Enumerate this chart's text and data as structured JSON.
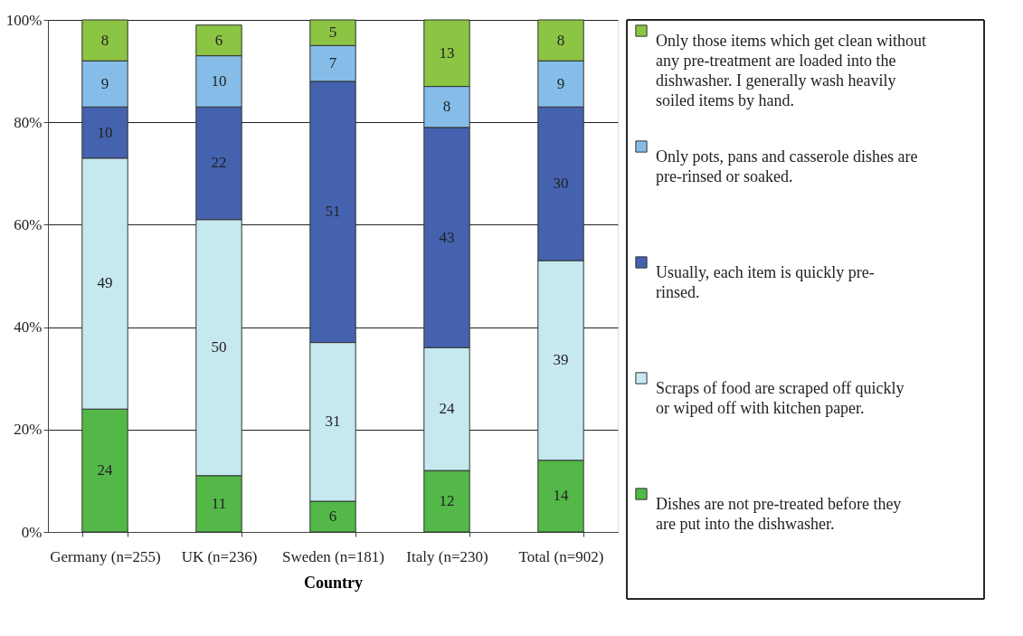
{
  "chart_data": {
    "type": "bar",
    "stacked": true,
    "xlabel": "Country",
    "categories": [
      "Germany (n=255)",
      "UK (n=236)",
      "Sweden (n=181)",
      "Italy (n=230)",
      "Total (n=902)"
    ],
    "series": [
      {
        "name": "Dishes are not pre-treated before they are put into the dishwasher.",
        "color": "#53b848",
        "values": [
          24,
          11,
          6,
          12,
          14
        ]
      },
      {
        "name": "Scraps of food are scraped off quickly or wiped off with kitchen paper.",
        "color": "#c6e9f0",
        "values": [
          49,
          50,
          31,
          24,
          39
        ]
      },
      {
        "name": "Usually, each item is quickly pre-rinsed.",
        "color": "#4462ae",
        "values": [
          10,
          22,
          51,
          43,
          30
        ]
      },
      {
        "name": "Only pots, pans and casserole dishes are pre-rinsed or soaked.",
        "color": "#85bde8",
        "values": [
          9,
          10,
          7,
          8,
          9
        ]
      },
      {
        "name": "Only those items which get clean without any pre-treatment are loaded into the dishwasher. I generally wash heavily soiled items by hand.",
        "color": "#8cc443",
        "values": [
          8,
          6,
          5,
          13,
          8
        ]
      }
    ],
    "ylim": [
      0,
      100
    ],
    "yticks": [
      {
        "value": 0,
        "label": "0%"
      },
      {
        "value": 20,
        "label": "20%"
      },
      {
        "value": 40,
        "label": "40%"
      },
      {
        "value": 60,
        "label": "60%"
      },
      {
        "value": 80,
        "label": "80%"
      },
      {
        "value": 100,
        "label": "100%"
      }
    ],
    "grid": "y",
    "data_labels": true,
    "legend": "right"
  }
}
